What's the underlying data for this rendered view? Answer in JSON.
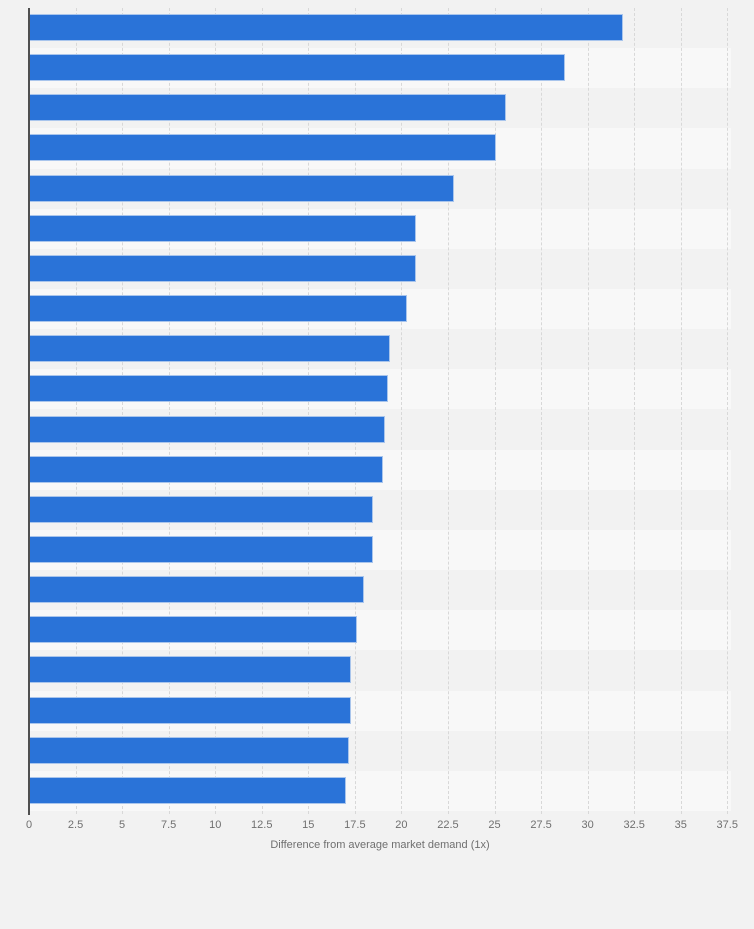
{
  "colors": {
    "page_bg": "#f2f2f2",
    "bar": "#2a73d8",
    "bar_edge": "#a9c5ec",
    "band": "#f8f8f8",
    "grid": "#d8d8d8",
    "axis_line": "#4f4f4f",
    "tick_label": "#6f6f6f"
  },
  "chart_data": {
    "type": "bar",
    "orientation": "horizontal",
    "title": "",
    "xlabel": "Difference from average market demand (1x)",
    "ylabel": "",
    "values": [
      31.9,
      28.8,
      25.6,
      25.1,
      22.8,
      20.8,
      20.8,
      20.3,
      19.4,
      19.3,
      19.1,
      19.0,
      18.5,
      18.5,
      18.0,
      17.6,
      17.3,
      17.3,
      17.2,
      17.0
    ],
    "xlim": [
      0,
      37.7
    ],
    "xticks": [
      0,
      2.5,
      5,
      7.5,
      10,
      12.5,
      15,
      17.5,
      20,
      22.5,
      25,
      27.5,
      30,
      32.5,
      35,
      37.5
    ],
    "xtick_labels": [
      "0",
      "2.5",
      "5",
      "7.5",
      "10",
      "12.5",
      "15",
      "17.5",
      "20",
      "22.5",
      "25",
      "27.5",
      "30",
      "32.5",
      "35",
      "37.5"
    ],
    "grid": "vertical-dashed",
    "legend": "none",
    "row_striping": "alternate"
  }
}
